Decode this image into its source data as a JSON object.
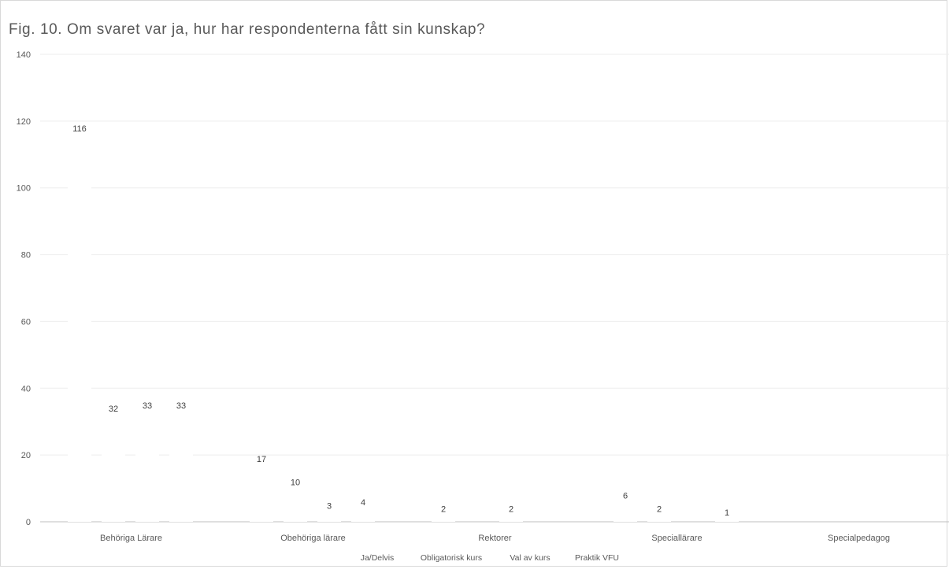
{
  "chart_data": {
    "type": "bar",
    "title": "Fig. 10. Om svaret var ja, hur har respondenterna fått sin kunskap?",
    "xlabel": "",
    "ylabel": "",
    "ylim": [
      0,
      140
    ],
    "yticks": [
      0,
      20,
      40,
      60,
      80,
      100,
      120,
      140
    ],
    "grid": true,
    "legend_position": "bottom",
    "categories": [
      "Behöriga Lärare",
      "Obehöriga lärare",
      "Rektorer",
      "Speciallärare",
      "Specialpedagog"
    ],
    "series": [
      {
        "name": "Ja/Delvis",
        "values": [
          116,
          17,
          2,
          6,
          null
        ]
      },
      {
        "name": "Obligatorisk kurs",
        "values": [
          32,
          10,
          null,
          2,
          null
        ]
      },
      {
        "name": "Val av kurs",
        "values": [
          33,
          3,
          2,
          null,
          null
        ]
      },
      {
        "name": "Praktik VFU",
        "values": [
          33,
          4,
          null,
          1,
          null
        ]
      }
    ],
    "data_labels": true
  }
}
